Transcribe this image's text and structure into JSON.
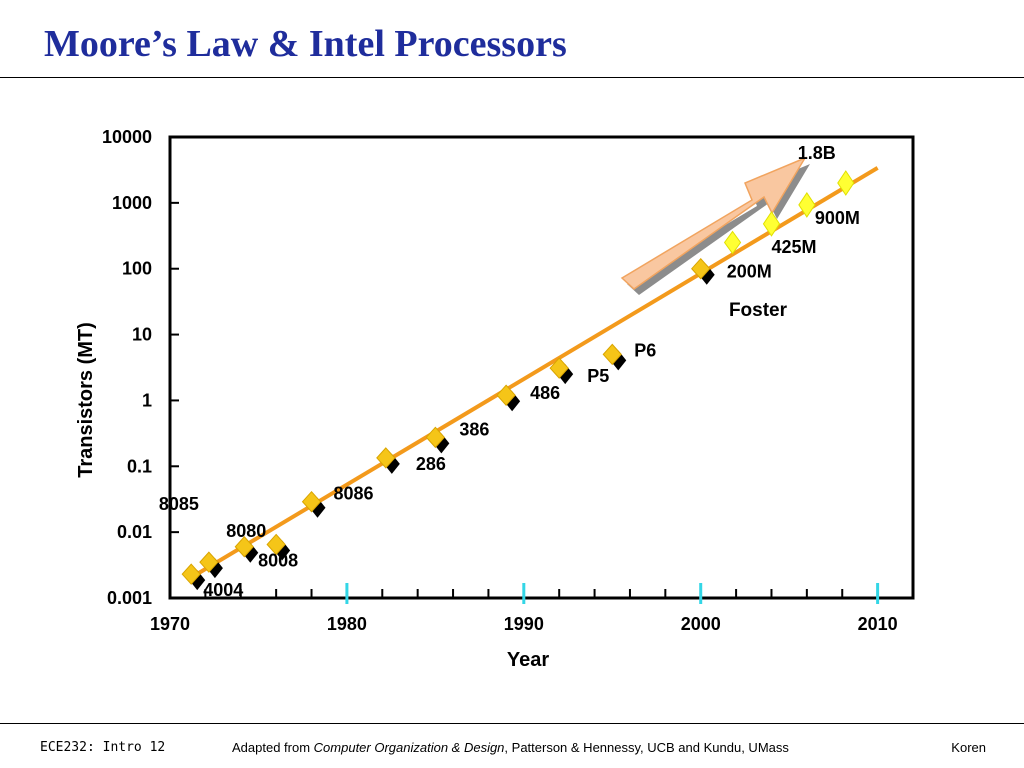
{
  "slide": {
    "title": "Moore’s Law & Intel Processors",
    "footer_left": "ECE232: Intro 12",
    "footer_center_prefix": "Adapted from ",
    "footer_center_book": "Computer Organization & Design",
    "footer_center_suffix": ", Patterson & Hennessy, UCB and Kundu, UMass",
    "footer_right": "Koren"
  },
  "chart_data": {
    "type": "scatter",
    "title": "",
    "xlabel": "Year",
    "ylabel": "Transistors (MT)",
    "yscale": "log",
    "xlim": [
      1970,
      2012
    ],
    "ylim": [
      0.001,
      10000
    ],
    "x_ticks": [
      1970,
      1980,
      1990,
      2000,
      2010
    ],
    "y_ticks": [
      {
        "value": 10000,
        "label": "10000"
      },
      {
        "value": 1000,
        "label": "1000"
      },
      {
        "value": 100,
        "label": "100"
      },
      {
        "value": 10,
        "label": "10"
      },
      {
        "value": 1,
        "label": "1"
      },
      {
        "value": 0.1,
        "label": "0.1"
      },
      {
        "value": 0.01,
        "label": "0.01"
      },
      {
        "value": 0.001,
        "label": "0.001"
      }
    ],
    "grid": false,
    "colors": {
      "trend": "#f39a1c",
      "marker": "#f5c518",
      "marker_future": "#ffff33",
      "marker_shadow": "#000000",
      "axis_ticks_decade": "#33d6e6",
      "arrow_fill": "#f9c7a0"
    },
    "trend_line": {
      "x": [
        1971,
        2010
      ],
      "y": [
        0.0019,
        3400
      ]
    },
    "points": [
      {
        "label": "4004",
        "x": 1971.2,
        "y": 0.0023
      },
      {
        "label": "8008",
        "x": 1976.0,
        "y": 0.0065
      },
      {
        "label": "8080",
        "x": 1974.2,
        "y": 0.006
      },
      {
        "label": "8085",
        "x": 1972.2,
        "y": 0.0035
      },
      {
        "label": "8086",
        "x": 1978.0,
        "y": 0.029
      },
      {
        "label": "286",
        "x": 1982.2,
        "y": 0.134
      },
      {
        "label": "386",
        "x": 1985.0,
        "y": 0.275
      },
      {
        "label": "486",
        "x": 1989.0,
        "y": 1.2
      },
      {
        "label": "P5",
        "x": 1992.0,
        "y": 3.1
      },
      {
        "label": "P6",
        "x": 1995.0,
        "y": 5.0
      },
      {
        "label": "200M",
        "x": 2000.0,
        "y": 100
      },
      {
        "label": "425M",
        "x": 2004.0,
        "y": 480
      },
      {
        "label": "900M",
        "x": 2006.0,
        "y": 930
      },
      {
        "label": "1.8B",
        "x": 2008.2,
        "y": 2000
      }
    ],
    "extra_points": [
      {
        "x": 2001.8,
        "y": 250
      }
    ],
    "annotations": [
      {
        "text": "Foster"
      }
    ]
  }
}
